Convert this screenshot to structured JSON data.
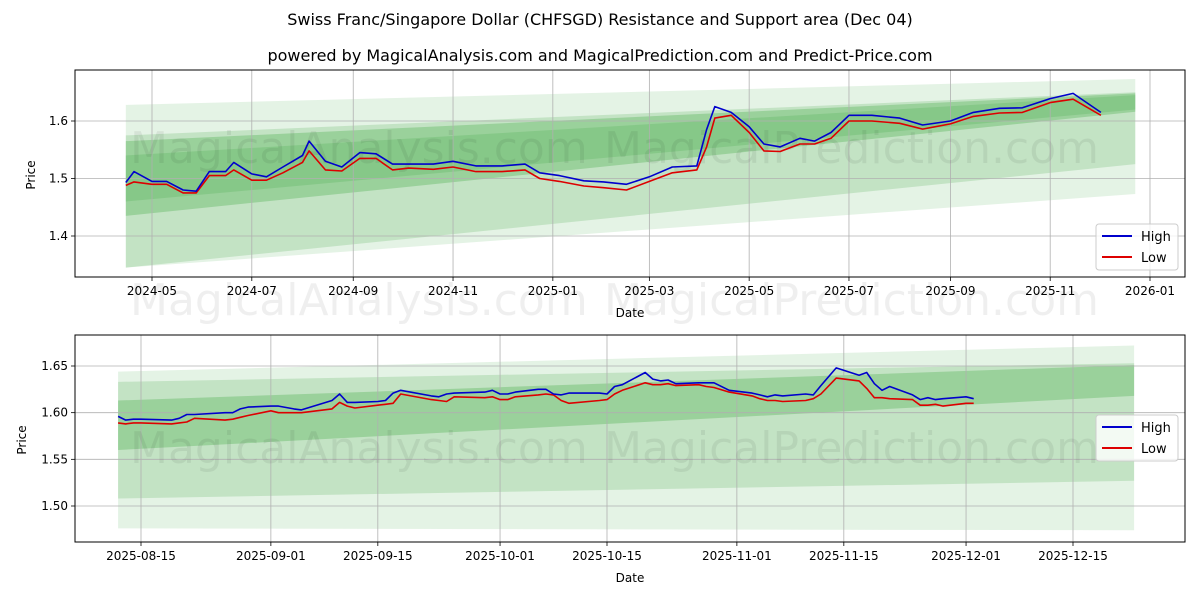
{
  "title": "Swiss Franc/Singapore Dollar (CHFSGD) Resistance and Support area (Dec 04)",
  "subtitle": "powered by MagicalAnalysis.com and MagicalPrediction.com and Predict-Price.com",
  "watermarks": [
    "MagicalAnalysis.com",
    "MagicalPrediction.com"
  ],
  "colors": {
    "high": "#0000cc",
    "low": "#dd0000",
    "band": "#4caf50",
    "grid": "#b0b0b0"
  },
  "chart_data": [
    {
      "type": "line",
      "title": "Swiss Franc/Singapore Dollar (CHFSGD) Resistance and Support area (Dec 04)",
      "xlabel": "Date",
      "ylabel": "Price",
      "x_ticks": [
        "2024-05",
        "2024-07",
        "2024-09",
        "2024-11",
        "2025-01",
        "2025-03",
        "2025-05",
        "2025-07",
        "2025-09",
        "2025-11",
        "2026-01"
      ],
      "y_ticks": [
        "1.4",
        "1.5",
        "1.6"
      ],
      "ylim": [
        1.325,
        1.69
      ],
      "grid": true,
      "legend": {
        "position": "lower right",
        "entries": [
          "High",
          "Low"
        ]
      },
      "x": [
        "2024-04-15",
        "2024-04-20",
        "2024-05-01",
        "2024-05-10",
        "2024-05-20",
        "2024-05-28",
        "2024-06-05",
        "2024-06-15",
        "2024-06-20",
        "2024-07-01",
        "2024-07-10",
        "2024-07-20",
        "2024-08-01",
        "2024-08-05",
        "2024-08-15",
        "2024-08-25",
        "2024-09-05",
        "2024-09-15",
        "2024-09-25",
        "2024-10-05",
        "2024-10-20",
        "2024-11-01",
        "2024-11-15",
        "2024-12-01",
        "2024-12-15",
        "2024-12-24",
        "2025-01-05",
        "2025-01-20",
        "2025-02-01",
        "2025-02-15",
        "2025-03-01",
        "2025-03-15",
        "2025-03-30",
        "2025-04-05",
        "2025-04-10",
        "2025-04-20",
        "2025-05-01",
        "2025-05-10",
        "2025-05-20",
        "2025-06-01",
        "2025-06-10",
        "2025-06-20",
        "2025-07-01",
        "2025-07-15",
        "2025-08-01",
        "2025-08-15",
        "2025-09-01",
        "2025-09-15",
        "2025-10-01",
        "2025-10-15",
        "2025-11-01",
        "2025-11-15",
        "2025-12-02"
      ],
      "series": [
        {
          "name": "High",
          "values": [
            1.493,
            1.512,
            1.495,
            1.495,
            1.48,
            1.478,
            1.512,
            1.512,
            1.528,
            1.508,
            1.503,
            1.52,
            1.54,
            1.565,
            1.53,
            1.52,
            1.545,
            1.543,
            1.525,
            1.525,
            1.525,
            1.53,
            1.522,
            1.522,
            1.525,
            1.51,
            1.505,
            1.496,
            1.494,
            1.49,
            1.503,
            1.52,
            1.522,
            1.585,
            1.625,
            1.615,
            1.59,
            1.56,
            1.555,
            1.57,
            1.565,
            1.58,
            1.61,
            1.61,
            1.605,
            1.593,
            1.6,
            1.615,
            1.622,
            1.623,
            1.639,
            1.648,
            1.615
          ]
        },
        {
          "name": "Low",
          "values": [
            1.488,
            1.494,
            1.49,
            1.49,
            1.475,
            1.475,
            1.505,
            1.505,
            1.515,
            1.497,
            1.497,
            1.51,
            1.528,
            1.548,
            1.515,
            1.513,
            1.535,
            1.535,
            1.515,
            1.518,
            1.516,
            1.52,
            1.512,
            1.512,
            1.515,
            1.5,
            1.495,
            1.487,
            1.484,
            1.48,
            1.495,
            1.51,
            1.515,
            1.555,
            1.605,
            1.61,
            1.58,
            1.548,
            1.547,
            1.56,
            1.56,
            1.57,
            1.6,
            1.6,
            1.596,
            1.586,
            1.595,
            1.608,
            1.614,
            1.615,
            1.632,
            1.638,
            1.61
          ]
        }
      ],
      "bands": [
        {
          "name": "outer-light",
          "start": [
            "2024-04-15",
            1.345,
            1.628
          ],
          "end": [
            "2025-12-23",
            1.473,
            1.673
          ]
        },
        {
          "name": "mid",
          "start": [
            "2024-04-15",
            1.345,
            1.575
          ],
          "end": [
            "2025-12-23",
            1.525,
            1.65
          ]
        },
        {
          "name": "inner",
          "start": [
            "2024-04-15",
            1.435,
            1.565
          ],
          "end": [
            "2025-12-23",
            1.616,
            1.648
          ]
        },
        {
          "name": "core",
          "start": [
            "2024-04-15",
            1.46,
            1.54
          ],
          "end": [
            "2025-12-23",
            1.62,
            1.645
          ]
        }
      ]
    },
    {
      "type": "line",
      "title": "",
      "xlabel": "Date",
      "ylabel": "Price",
      "x_ticks": [
        "2025-08-15",
        "2025-09-01",
        "2025-09-15",
        "2025-10-01",
        "2025-10-15",
        "2025-11-01",
        "2025-11-15",
        "2025-12-01",
        "2025-12-15"
      ],
      "y_ticks": [
        "1.50",
        "1.55",
        "1.60",
        "1.65"
      ],
      "ylim": [
        1.462,
        1.683
      ],
      "grid": true,
      "legend": {
        "position": "center right",
        "entries": [
          "High",
          "Low"
        ]
      },
      "x": [
        "2025-08-12",
        "2025-08-13",
        "2025-08-14",
        "2025-08-15",
        "2025-08-19",
        "2025-08-20",
        "2025-08-21",
        "2025-08-22",
        "2025-08-26",
        "2025-08-27",
        "2025-08-28",
        "2025-08-29",
        "2025-09-01",
        "2025-09-02",
        "2025-09-04",
        "2025-09-05",
        "2025-09-09",
        "2025-09-10",
        "2025-09-11",
        "2025-09-12",
        "2025-09-15",
        "2025-09-16",
        "2025-09-17",
        "2025-09-18",
        "2025-09-22",
        "2025-09-23",
        "2025-09-24",
        "2025-09-25",
        "2025-09-29",
        "2025-09-30",
        "2025-10-01",
        "2025-10-02",
        "2025-10-03",
        "2025-10-06",
        "2025-10-07",
        "2025-10-08",
        "2025-10-09",
        "2025-10-10",
        "2025-10-14",
        "2025-10-15",
        "2025-10-16",
        "2025-10-17",
        "2025-10-20",
        "2025-10-21",
        "2025-10-22",
        "2025-10-23",
        "2025-10-24",
        "2025-10-27",
        "2025-10-28",
        "2025-10-29",
        "2025-10-31",
        "2025-11-03",
        "2025-11-04",
        "2025-11-05",
        "2025-11-06",
        "2025-11-07",
        "2025-11-10",
        "2025-11-11",
        "2025-11-12",
        "2025-11-14",
        "2025-11-17",
        "2025-11-18",
        "2025-11-19",
        "2025-11-20",
        "2025-11-21",
        "2025-11-24",
        "2025-11-25",
        "2025-11-26",
        "2025-11-27",
        "2025-11-28",
        "2025-12-01",
        "2025-12-02"
      ],
      "series": [
        {
          "name": "High",
          "values": [
            1.596,
            1.592,
            1.593,
            1.593,
            1.592,
            1.594,
            1.598,
            1.598,
            1.6,
            1.6,
            1.604,
            1.606,
            1.607,
            1.607,
            1.604,
            1.603,
            1.613,
            1.62,
            1.611,
            1.611,
            1.612,
            1.613,
            1.621,
            1.624,
            1.618,
            1.617,
            1.62,
            1.621,
            1.622,
            1.624,
            1.62,
            1.62,
            1.622,
            1.625,
            1.625,
            1.62,
            1.619,
            1.621,
            1.621,
            1.62,
            1.628,
            1.63,
            1.643,
            1.636,
            1.634,
            1.635,
            1.631,
            1.632,
            1.632,
            1.632,
            1.624,
            1.621,
            1.619,
            1.617,
            1.619,
            1.618,
            1.62,
            1.619,
            1.629,
            1.648,
            1.64,
            1.643,
            1.631,
            1.624,
            1.628,
            1.619,
            1.614,
            1.616,
            1.614,
            1.615,
            1.617,
            1.615
          ]
        },
        {
          "name": "Low",
          "values": [
            1.589,
            1.588,
            1.589,
            1.589,
            1.588,
            1.589,
            1.59,
            1.594,
            1.592,
            1.593,
            1.595,
            1.597,
            1.602,
            1.6,
            1.6,
            1.6,
            1.604,
            1.611,
            1.607,
            1.605,
            1.608,
            1.609,
            1.61,
            1.62,
            1.614,
            1.613,
            1.612,
            1.617,
            1.616,
            1.617,
            1.614,
            1.614,
            1.617,
            1.619,
            1.62,
            1.619,
            1.613,
            1.61,
            1.613,
            1.614,
            1.62,
            1.624,
            1.632,
            1.63,
            1.63,
            1.631,
            1.629,
            1.63,
            1.628,
            1.627,
            1.622,
            1.618,
            1.615,
            1.613,
            1.613,
            1.612,
            1.613,
            1.615,
            1.62,
            1.637,
            1.634,
            1.626,
            1.616,
            1.616,
            1.615,
            1.614,
            1.608,
            1.608,
            1.609,
            1.607,
            1.61,
            1.61
          ]
        }
      ],
      "bands": [
        {
          "name": "outer-light",
          "start": [
            "2025-08-12",
            1.476,
            1.644
          ],
          "end": [
            "2025-12-23",
            1.474,
            1.672
          ]
        },
        {
          "name": "mid",
          "start": [
            "2025-08-12",
            1.508,
            1.633
          ],
          "end": [
            "2025-12-23",
            1.527,
            1.653
          ]
        },
        {
          "name": "inner",
          "start": [
            "2025-08-12",
            1.56,
            1.613
          ],
          "end": [
            "2025-12-23",
            1.618,
            1.651
          ]
        }
      ]
    }
  ]
}
